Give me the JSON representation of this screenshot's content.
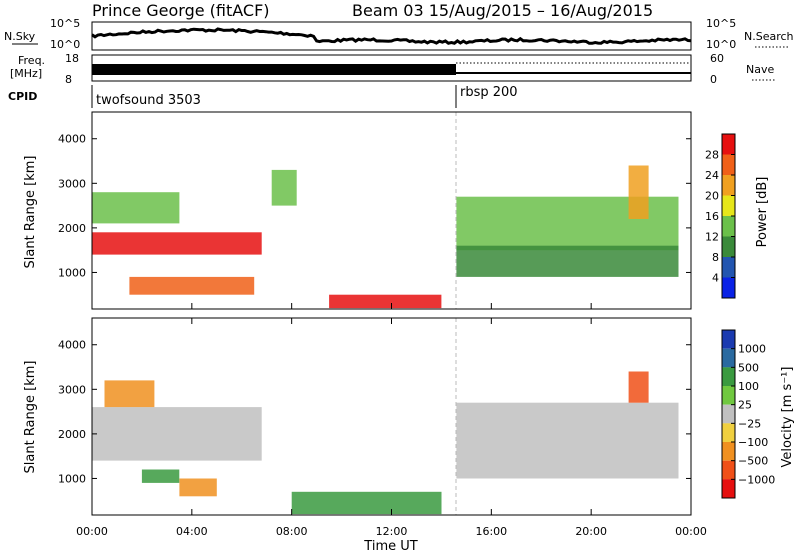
{
  "header": {
    "station": "Prince George (fitACF)",
    "beam_info": "Beam 03 15/Aug/2015 – 16/Aug/2015"
  },
  "top_panels": {
    "nsky_label": "N.Sky",
    "nsky_tick_top": "10^5",
    "nsky_tick_bottom": "10^0",
    "nsearch_label": "N.Search",
    "nsearch_tick_top": "10^5",
    "nsearch_tick_bottom": "10^0",
    "freq_label_1": "Freq.",
    "freq_label_2": "[MHz]",
    "freq_tick_top": "18",
    "freq_tick_bottom": "8",
    "nave_label": "Nave",
    "nave_tick_top": "60",
    "nave_tick_bottom": "0",
    "cpid_label": "CPID",
    "cpid_segments": [
      {
        "name": "twofsound 3503",
        "start_hour": 0,
        "end_hour": 14.5
      },
      {
        "name": "rbsp 200",
        "start_hour": 14.5,
        "end_hour": 24
      }
    ]
  },
  "axes": {
    "xlabel": "Time UT",
    "ylabel": "Slant Range [km]",
    "x_ticks": [
      "00:00",
      "04:00",
      "08:00",
      "12:00",
      "16:00",
      "20:00",
      "00:00"
    ],
    "y_ticks": [
      "1000",
      "2000",
      "3000",
      "4000"
    ]
  },
  "colorbars": {
    "power": {
      "label": "Power [dB]",
      "ticks": [
        "4",
        "8",
        "12",
        "16",
        "20",
        "24",
        "28"
      ],
      "colors": [
        "#0a22e6",
        "#2255b0",
        "#3a8a3a",
        "#6bc04a",
        "#e6e61a",
        "#f0a020",
        "#f06018",
        "#e61010"
      ]
    },
    "velocity": {
      "label": "Velocity [m s⁻¹]",
      "ticks": [
        "1000",
        "500",
        "100",
        "25",
        "−25",
        "−100",
        "−500",
        "−1000"
      ],
      "colors": [
        "#1a3ab0",
        "#2a6aa0",
        "#3a9a40",
        "#70c840",
        "#c0c0c0",
        "#f0d040",
        "#f09020",
        "#f05018",
        "#e61010"
      ]
    }
  },
  "chart_data": [
    {
      "type": "heatmap",
      "title": "Power",
      "quantity": "Power [dB]",
      "x_range_hours": [
        0,
        24
      ],
      "ylim_km": [
        180,
        4600
      ],
      "regions": [
        {
          "start_hour": 0.0,
          "end_hour": 6.8,
          "range_km": [
            1400,
            1900
          ],
          "power_db": 28
        },
        {
          "start_hour": 1.5,
          "end_hour": 6.5,
          "range_km": [
            500,
            900
          ],
          "power_db": 26
        },
        {
          "start_hour": 0.0,
          "end_hour": 3.5,
          "range_km": [
            2100,
            2800
          ],
          "power_db": 14
        },
        {
          "start_hour": 9.5,
          "end_hour": 14.0,
          "range_km": [
            200,
            500
          ],
          "power_db": 30
        },
        {
          "start_hour": 7.2,
          "end_hour": 8.2,
          "range_km": [
            2500,
            3300
          ],
          "power_db": 14
        },
        {
          "start_hour": 14.6,
          "end_hour": 23.5,
          "range_km": [
            1500,
            2700
          ],
          "power_db": 12
        },
        {
          "start_hour": 14.6,
          "end_hour": 23.5,
          "range_km": [
            900,
            1600
          ],
          "power_db": 10
        },
        {
          "start_hour": 21.5,
          "end_hour": 22.3,
          "range_km": [
            2200,
            3400
          ],
          "power_db": 20
        }
      ]
    },
    {
      "type": "heatmap",
      "title": "Velocity",
      "quantity": "Velocity [m s⁻¹]",
      "x_range_hours": [
        0,
        24
      ],
      "ylim_km": [
        180,
        4600
      ],
      "regions": [
        {
          "start_hour": 0.0,
          "end_hour": 6.8,
          "range_km": [
            1400,
            2600
          ],
          "velocity_ms": 0
        },
        {
          "start_hour": 0.5,
          "end_hour": 2.5,
          "range_km": [
            2600,
            3200
          ],
          "velocity_ms": -150
        },
        {
          "start_hour": 3.5,
          "end_hour": 5.0,
          "range_km": [
            600,
            1000
          ],
          "velocity_ms": -150
        },
        {
          "start_hour": 2.0,
          "end_hour": 3.5,
          "range_km": [
            900,
            1200
          ],
          "velocity_ms": 100
        },
        {
          "start_hour": 8.0,
          "end_hour": 14.0,
          "range_km": [
            200,
            700
          ],
          "velocity_ms": 100
        },
        {
          "start_hour": 14.6,
          "end_hour": 23.5,
          "range_km": [
            1000,
            2700
          ],
          "velocity_ms": 0
        },
        {
          "start_hour": 21.5,
          "end_hour": 22.3,
          "range_km": [
            2700,
            3400
          ],
          "velocity_ms": -600
        }
      ]
    }
  ]
}
